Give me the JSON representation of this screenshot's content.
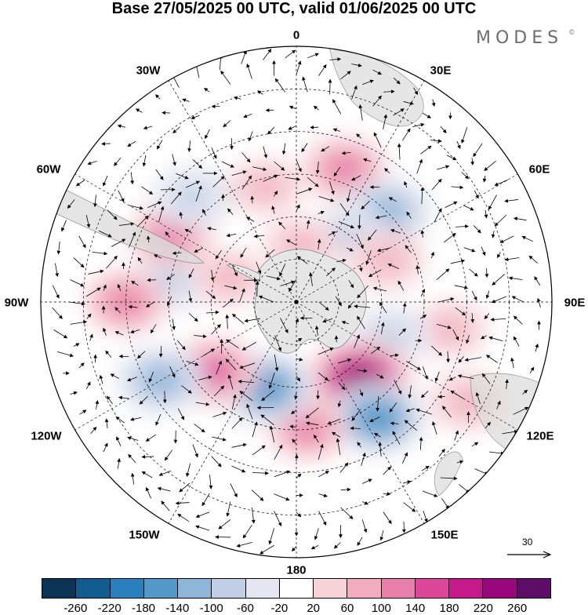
{
  "title": "Base 27/05/2025 00 UTC, valid 01/06/2025 00 UTC",
  "brand": {
    "text": "MODES",
    "mark": "©"
  },
  "longitude_labels": {
    "lon_0": "0",
    "lon_30e": "30E",
    "lon_60e": "60E",
    "lon_90e": "90E",
    "lon_120e": "120E",
    "lon_150e": "150E",
    "lon_180": "180",
    "lon_150w": "150W",
    "lon_120w": "120W",
    "lon_90w": "90W",
    "lon_60w": "60W",
    "lon_30w": "30W"
  },
  "wind_reference": {
    "label": "30",
    "icon": "arrow-right-icon"
  },
  "colorbar": {
    "ticks": [
      "-260",
      "-220",
      "-180",
      "-140",
      "-100",
      "-60",
      "-20",
      "20",
      "60",
      "100",
      "140",
      "180",
      "220",
      "260"
    ],
    "colors": [
      "#0b3454",
      "#125c8f",
      "#2a80bd",
      "#5499c9",
      "#8fb5d9",
      "#c0cfe6",
      "#e4e6f1",
      "#ffffff",
      "#f7d3d8",
      "#f1acc0",
      "#e77fa8",
      "#dc479a",
      "#c61a8c",
      "#98087c",
      "#5d0d66"
    ]
  },
  "map": {
    "projection": "south-polar-stereographic",
    "land_color": "#e8e8e8",
    "anomalies": [
      {
        "value": 120,
        "lon": 20,
        "lat": -40
      },
      {
        "value": -140,
        "lon": 45,
        "lat": -45
      },
      {
        "value": -80,
        "lon": 38,
        "lat": -60
      },
      {
        "value": 80,
        "lon": 65,
        "lat": -55
      },
      {
        "value": 60,
        "lon": 100,
        "lat": -35
      },
      {
        "value": -100,
        "lon": 110,
        "lat": -55
      },
      {
        "value": 240,
        "lon": 140,
        "lat": -55
      },
      {
        "value": -180,
        "lon": 145,
        "lat": -40
      },
      {
        "value": 100,
        "lon": 175,
        "lat": -45
      },
      {
        "value": -180,
        "lon": -160,
        "lat": -58
      },
      {
        "value": 160,
        "lon": -130,
        "lat": -52
      },
      {
        "value": -140,
        "lon": -120,
        "lat": -35
      },
      {
        "value": -100,
        "lon": -80,
        "lat": -45
      },
      {
        "value": 120,
        "lon": -90,
        "lat": -30
      },
      {
        "value": 120,
        "lon": -62,
        "lat": -40
      },
      {
        "value": -100,
        "lon": -45,
        "lat": -38
      },
      {
        "value": 60,
        "lon": -15,
        "lat": -48
      },
      {
        "value": 60,
        "lon": 5,
        "lat": -70
      },
      {
        "value": 60,
        "lon": -70,
        "lat": -65
      },
      {
        "value": 80,
        "lon": 120,
        "lat": -20
      }
    ]
  }
}
